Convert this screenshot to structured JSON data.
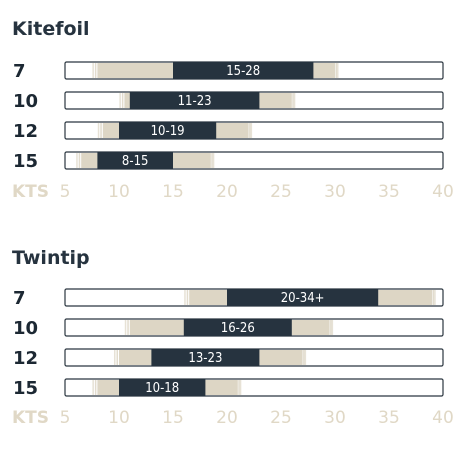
{
  "chart_data": [
    {
      "type": "bar",
      "orientation": "horizontal-range",
      "title": "Kitefoil",
      "xlabel": "KTS",
      "xlim": [
        5,
        40
      ],
      "xticks": [
        "5",
        "10",
        "15",
        "20",
        "25",
        "30",
        "35",
        "40"
      ],
      "colors": {
        "core": "#26333f",
        "extended": "#ddd6c5",
        "track_border": "#2b3640",
        "tick": "#e0d8c6"
      },
      "rows": [
        {
          "size": "7",
          "label": "15-28",
          "core": [
            15,
            28
          ],
          "extended": [
            8,
            30
          ]
        },
        {
          "size": "10",
          "label": "11-23",
          "core": [
            11,
            23
          ],
          "extended": [
            10.5,
            26
          ]
        },
        {
          "size": "12",
          "label": "10-19",
          "core": [
            10,
            19
          ],
          "extended": [
            8.5,
            22
          ]
        },
        {
          "size": "15",
          "label": "8-15",
          "core": [
            8,
            15
          ],
          "extended": [
            6.5,
            18.5
          ]
        }
      ]
    },
    {
      "type": "bar",
      "orientation": "horizontal-range",
      "title": "Twintip",
      "xlabel": "KTS",
      "xlim": [
        5,
        40
      ],
      "xticks": [
        "5",
        "10",
        "15",
        "20",
        "25",
        "30",
        "35",
        "40"
      ],
      "colors": {
        "core": "#26333f",
        "extended": "#ddd6c5",
        "track_border": "#2b3640",
        "tick": "#e0d8c6"
      },
      "rows": [
        {
          "size": "7",
          "label": "20-34+",
          "core": [
            20,
            34
          ],
          "extended": [
            16.5,
            39
          ]
        },
        {
          "size": "10",
          "label": "16-26",
          "core": [
            16,
            26
          ],
          "extended": [
            11,
            29.5
          ]
        },
        {
          "size": "12",
          "label": "13-23",
          "core": [
            13,
            23
          ],
          "extended": [
            10,
            27
          ]
        },
        {
          "size": "15",
          "label": "10-18",
          "core": [
            10,
            18
          ],
          "extended": [
            8,
            21
          ]
        }
      ]
    }
  ]
}
